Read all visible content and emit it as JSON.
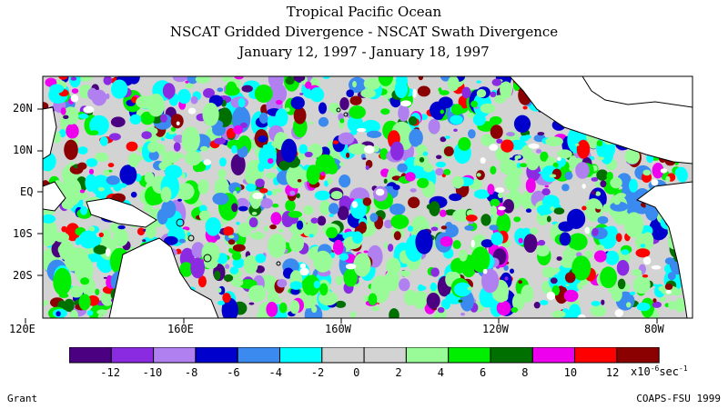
{
  "title_lines": [
    "Tropical Pacific Ocean",
    "NSCAT Gridded Divergence - NSCAT Swath Divergence",
    "January 12, 1997 - January 18, 1997"
  ],
  "lat_labels": [
    "20N",
    "10N",
    "EQ",
    "10S",
    "20S"
  ],
  "lon_labels": [
    "120E",
    "160E",
    "160W",
    "120W",
    "80W"
  ],
  "colorbar": {
    "colors": [
      "#4b0082",
      "#8a2be2",
      "#b080f0",
      "#0000cd",
      "#3a8af0",
      "#00ffff",
      "#d3d3d3",
      "#d3d3d3",
      "#98fb98",
      "#00ee00",
      "#007000",
      "#ee00ee",
      "#ff0000",
      "#8b0000"
    ],
    "labels": [
      "-12",
      "-10",
      "-8",
      "-6",
      "-4",
      "-2",
      "0",
      "2",
      "4",
      "6",
      "8",
      "10",
      "12"
    ],
    "units_prefix": "x10",
    "units_exp": "-6",
    "units_suffix": "sec",
    "units_suffix_exp": "-1"
  },
  "footer_left": "Grant",
  "footer_right": "COAPS-FSU 1999"
}
